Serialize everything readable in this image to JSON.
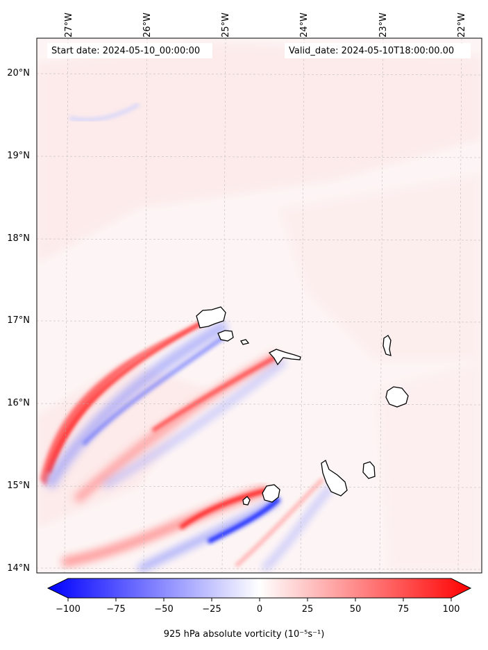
{
  "map": {
    "start_date": "Start date: 2024-05-10_00:00:00",
    "valid_date": "Valid_date: 2024-05-10T18:00:00.00",
    "lon_labels": [
      "27°W",
      "26°W",
      "25°W",
      "24°W",
      "23°W",
      "22°W"
    ],
    "lat_labels": [
      "20°N",
      "19°N",
      "18°N",
      "17°N",
      "16°N",
      "15°N",
      "14°N"
    ],
    "extent": {
      "lon_min": -27.4,
      "lon_max": -21.9,
      "lat_min": 13.95,
      "lat_max": 20.4
    },
    "features": [
      "Cape Verde islands coastlines",
      "red/blue vorticity wake streaks southwest of islands"
    ]
  },
  "colorbar": {
    "ticks": [
      "−100",
      "−75",
      "−50",
      "−25",
      "0",
      "25",
      "50",
      "75",
      "100"
    ],
    "label": "925 hPa absolute vorticity (10⁻⁵s⁻¹)",
    "range": [
      -100,
      100
    ],
    "colors": {
      "negative": "#0000ff",
      "zero": "#ffffff",
      "positive": "#ff0000"
    }
  }
}
